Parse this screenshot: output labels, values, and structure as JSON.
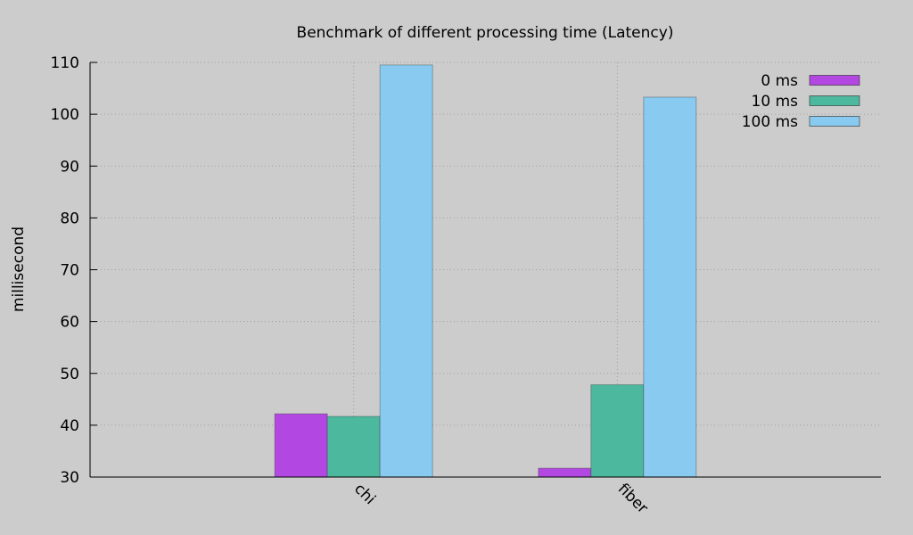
{
  "chart_data": {
    "type": "bar",
    "title": "Benchmark of different processing time (Latency)",
    "xlabel": "",
    "ylabel": "millisecond",
    "ylim": [
      30,
      110
    ],
    "yticks": [
      30,
      40,
      50,
      60,
      70,
      80,
      90,
      100,
      110
    ],
    "categories": [
      "chi",
      "fiber"
    ],
    "series": [
      {
        "name": "0 ms",
        "color": "#b347e2",
        "values": [
          42.2,
          31.7
        ]
      },
      {
        "name": "10 ms",
        "color": "#4cb99e",
        "values": [
          41.7,
          47.8
        ]
      },
      {
        "name": "100 ms",
        "color": "#88caf0",
        "values": [
          109.5,
          103.3
        ]
      }
    ],
    "grid": true,
    "legend_position": "top-right"
  }
}
